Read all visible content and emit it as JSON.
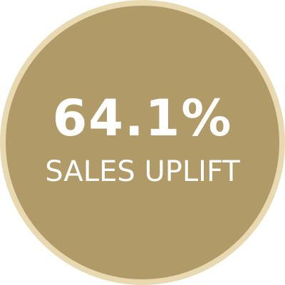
{
  "badge": {
    "value": "64.1%",
    "label": "SALES UPLIFT"
  },
  "colors": {
    "fill": "#b09a68",
    "ring": "#e8d9b0",
    "text": "#ffffff",
    "background": "#ffffff"
  }
}
